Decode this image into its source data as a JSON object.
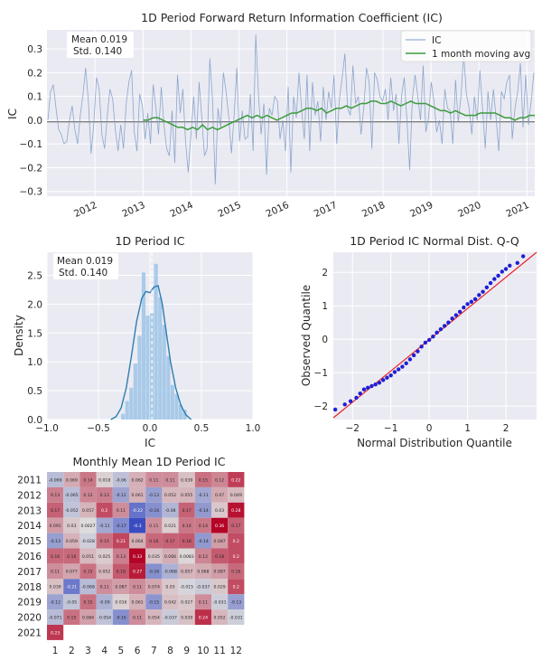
{
  "chart_data": [
    {
      "type": "line",
      "title": "1D Period Forward Return Information Coefficient (IC)",
      "xlabel": "",
      "ylabel": "IC",
      "xlim": [
        "2011-01-01",
        "2021-03-01"
      ],
      "ylim": [
        -0.32,
        0.38
      ],
      "x_ticks": [
        "2012",
        "2013",
        "2014",
        "2015",
        "2016",
        "2017",
        "2018",
        "2019",
        "2020",
        "2021"
      ],
      "y_ticks": [
        "−0.3",
        "−0.2",
        "−0.1",
        "0.0",
        "0.1",
        "0.2",
        "0.3"
      ],
      "stats": [
        "Mean 0.019",
        "Std. 0.140"
      ],
      "legend": [
        "IC",
        "1 month moving avg"
      ],
      "legend_position": "top-right",
      "colors": {
        "ic": "#7a9ac7",
        "moving_avg": "#3d9c3d",
        "zero_line": "#7f7f7f"
      },
      "grid": true,
      "series": [
        {
          "name": "IC",
          "values": [
            0.0,
            0.12,
            0.15,
            0.05,
            -0.04,
            -0.06,
            -0.1,
            -0.09,
            0.0,
            0.06,
            -0.04,
            -0.1,
            0.02,
            0.11,
            0.22,
            0.08,
            -0.14,
            -0.02,
            0.18,
            0.13,
            -0.06,
            -0.12,
            0.02,
            0.13,
            0.09,
            -0.04,
            -0.13,
            -0.02,
            -0.12,
            0.07,
            0.16,
            0.21,
            -0.05,
            -0.13,
            0.11,
            0.06,
            -0.08,
            0.03,
            -0.1,
            0.15,
            0.05,
            -0.06,
            0.14,
            -0.02,
            -0.12,
            -0.15,
            0.04,
            -0.18,
            0.19,
            0.03,
            0.13,
            -0.09,
            -0.22,
            -0.06,
            0.1,
            -0.08,
            0.16,
            0.01,
            -0.15,
            -0.12,
            0.26,
            0.08,
            -0.27,
            0.05,
            -0.03,
            0.2,
            0.12,
            0.01,
            -0.14,
            0.02,
            0.22,
            -0.09,
            0.04,
            -0.08,
            -0.07,
            0.11,
            -0.13,
            0.36,
            0.11,
            -0.06,
            0.07,
            -0.23,
            0.05,
            0.02,
            0.1,
            0.08,
            -0.08,
            0.0,
            -0.13,
            0.14,
            -0.22,
            0.1,
            0.01,
            0.2,
            0.04,
            -0.08,
            0.19,
            -0.13,
            0.16,
            0.02,
            0.08,
            -0.09,
            0.14,
            0.0,
            0.12,
            0.05,
            0.19,
            -0.1,
            0.09,
            0.18,
            0.28,
            0.05,
            0.02,
            0.23,
            0.07,
            0.1,
            -0.06,
            0.05,
            0.22,
            0.16,
            -0.12,
            0.2,
            0.17,
            0.1,
            0.08,
            0.13,
            0.0,
            0.18,
            0.04,
            0.11,
            -0.1,
            0.1,
            0.18,
            0.0,
            -0.21,
            0.09,
            0.19,
            0.1,
            0.0,
            0.23,
            -0.05,
            0.01,
            0.16,
            0.08,
            -0.05,
            0.0,
            -0.1,
            0.13,
            0.05,
            0.04,
            -0.1,
            0.17,
            -0.01,
            0.1,
            0.28,
            0.11,
            0.05,
            -0.06,
            0.1,
            0.0,
            0.21,
            0.05,
            -0.12,
            0.12,
            0.0,
            0.13,
            0.01,
            -0.13,
            0.12,
            0.09,
            0.16,
            0.19,
            -0.08,
            0.05,
            0.12,
            0.24,
            -0.03,
            0.19,
            -0.02,
            0.08,
            0.2
          ]
        },
        {
          "name": "1 month moving avg",
          "values": [
            0.0,
            0.0,
            0.01,
            0.01,
            0.0,
            -0.01,
            -0.02,
            -0.03,
            -0.03,
            -0.04,
            -0.03,
            -0.04,
            -0.02,
            -0.04,
            -0.03,
            -0.04,
            -0.03,
            -0.02,
            -0.01,
            0.0,
            0.01,
            0.02,
            0.01,
            0.02,
            0.01,
            0.02,
            0.01,
            0.0,
            0.01,
            0.02,
            0.03,
            0.03,
            0.04,
            0.05,
            0.05,
            0.04,
            0.05,
            0.03,
            0.04,
            0.05,
            0.05,
            0.06,
            0.05,
            0.06,
            0.07,
            0.07,
            0.08,
            0.08,
            0.07,
            0.07,
            0.08,
            0.07,
            0.06,
            0.07,
            0.08,
            0.07,
            0.07,
            0.07,
            0.06,
            0.05,
            0.04,
            0.04,
            0.03,
            0.04,
            0.03,
            0.02,
            0.02,
            0.02,
            0.03,
            0.03,
            0.03,
            0.03,
            0.02,
            0.01,
            0.01,
            0.0,
            0.01,
            0.01,
            0.02,
            0.02
          ]
        }
      ]
    },
    {
      "type": "bar",
      "title": "1D Period IC",
      "xlabel": "IC",
      "ylabel": "Density",
      "xlim": [
        -1.0,
        1.0
      ],
      "ylim": [
        0,
        2.9
      ],
      "x_ticks": [
        "−1.0",
        "−0.5",
        "0.0",
        "0.5",
        "1.0"
      ],
      "y_ticks": [
        "0.0",
        "0.5",
        "1.0",
        "1.5",
        "2.0",
        "2.5"
      ],
      "stats": [
        "Mean 0.019",
        "Std. 0.140"
      ],
      "mean_line": 0.019,
      "grid": true,
      "colors": {
        "bars": "#9ec4e6",
        "kde": "#2a7fb0"
      },
      "bins": [
        [
          -0.28,
          -0.24,
          0.1
        ],
        [
          -0.24,
          -0.2,
          0.32
        ],
        [
          -0.2,
          -0.16,
          0.55
        ],
        [
          -0.16,
          -0.12,
          0.97
        ],
        [
          -0.12,
          -0.08,
          1.45
        ],
        [
          -0.08,
          -0.04,
          2.55
        ],
        [
          -0.04,
          0.0,
          1.8
        ],
        [
          0.0,
          0.04,
          1.84
        ],
        [
          0.04,
          0.08,
          2.7
        ],
        [
          0.08,
          0.12,
          2.12
        ],
        [
          0.12,
          0.16,
          1.64
        ],
        [
          0.16,
          0.2,
          1.1
        ],
        [
          0.2,
          0.24,
          0.6
        ],
        [
          0.24,
          0.28,
          0.44
        ],
        [
          0.28,
          0.32,
          0.26
        ],
        [
          0.32,
          0.36,
          0.17
        ]
      ],
      "kde": [
        [
          -0.38,
          0.0
        ],
        [
          -0.33,
          0.05
        ],
        [
          -0.28,
          0.2
        ],
        [
          -0.23,
          0.55
        ],
        [
          -0.18,
          1.1
        ],
        [
          -0.13,
          1.7
        ],
        [
          -0.08,
          2.1
        ],
        [
          -0.04,
          2.22
        ],
        [
          0.0,
          2.2
        ],
        [
          0.04,
          2.3
        ],
        [
          0.08,
          2.32
        ],
        [
          0.12,
          2.0
        ],
        [
          0.16,
          1.5
        ],
        [
          0.2,
          1.0
        ],
        [
          0.25,
          0.55
        ],
        [
          0.3,
          0.25
        ],
        [
          0.35,
          0.08
        ],
        [
          0.4,
          0.0
        ]
      ]
    },
    {
      "type": "scatter",
      "title": "1D Period IC Normal Dist. Q-Q",
      "xlabel": "Normal Distribution Quantile",
      "ylabel": "Observed Quantile",
      "xlim": [
        -2.5,
        2.8
      ],
      "ylim": [
        -2.4,
        2.6
      ],
      "x_ticks": [
        "−2",
        "−1",
        "0",
        "1",
        "2"
      ],
      "y_ticks": [
        "−2",
        "−1",
        "0",
        "1",
        "2"
      ],
      "grid": true,
      "colors": {
        "points": "#1f1fd6",
        "fit_line": "#e8242a"
      },
      "points": [
        [
          -2.45,
          -2.1
        ],
        [
          -2.2,
          -1.95
        ],
        [
          -2.05,
          -1.85
        ],
        [
          -1.9,
          -1.75
        ],
        [
          -1.8,
          -1.62
        ],
        [
          -1.7,
          -1.5
        ],
        [
          -1.6,
          -1.45
        ],
        [
          -1.5,
          -1.4
        ],
        [
          -1.4,
          -1.35
        ],
        [
          -1.3,
          -1.3
        ],
        [
          -1.2,
          -1.22
        ],
        [
          -1.1,
          -1.15
        ],
        [
          -1.0,
          -1.08
        ],
        [
          -0.9,
          -0.98
        ],
        [
          -0.8,
          -0.9
        ],
        [
          -0.7,
          -0.82
        ],
        [
          -0.6,
          -0.72
        ],
        [
          -0.5,
          -0.6
        ],
        [
          -0.4,
          -0.48
        ],
        [
          -0.3,
          -0.36
        ],
        [
          -0.2,
          -0.22
        ],
        [
          -0.1,
          -0.1
        ],
        [
          0.0,
          -0.02
        ],
        [
          0.1,
          0.08
        ],
        [
          0.2,
          0.2
        ],
        [
          0.3,
          0.3
        ],
        [
          0.4,
          0.4
        ],
        [
          0.5,
          0.5
        ],
        [
          0.6,
          0.62
        ],
        [
          0.7,
          0.72
        ],
        [
          0.8,
          0.82
        ],
        [
          0.9,
          0.95
        ],
        [
          1.0,
          1.05
        ],
        [
          1.1,
          1.12
        ],
        [
          1.2,
          1.2
        ],
        [
          1.3,
          1.32
        ],
        [
          1.4,
          1.42
        ],
        [
          1.5,
          1.55
        ],
        [
          1.6,
          1.68
        ],
        [
          1.7,
          1.8
        ],
        [
          1.8,
          1.9
        ],
        [
          1.9,
          2.02
        ],
        [
          2.0,
          2.1
        ],
        [
          2.1,
          2.2
        ],
        [
          2.3,
          2.28
        ],
        [
          2.45,
          2.48
        ]
      ]
    },
    {
      "type": "heatmap",
      "title": "Monthly Mean 1D Period IC",
      "row_labels": [
        "2011",
        "2012",
        "2013",
        "2014",
        "2015",
        "2016",
        "2017",
        "2018",
        "2019",
        "2020",
        "2021"
      ],
      "col_labels": [
        "1",
        "2",
        "3",
        "4",
        "5",
        "6",
        "7",
        "8",
        "9",
        "10",
        "11",
        "12"
      ],
      "color_scale": {
        "negative": "#3b4cc0",
        "neutral": "#dddddd",
        "positive": "#b40426",
        "limit": 0.3
      },
      "values": [
        [
          -0.069,
          0.069,
          0.14,
          0.018,
          -0.06,
          0.062,
          0.11,
          0.11,
          0.039,
          0.15,
          0.12,
          0.22
        ],
        [
          0.13,
          -0.065,
          0.12,
          0.13,
          -0.12,
          0.061,
          -0.13,
          0.052,
          0.055,
          -0.11,
          0.07,
          0.049
        ],
        [
          0.17,
          -0.052,
          0.057,
          0.2,
          0.11,
          -0.22,
          -0.16,
          -0.08,
          0.17,
          -0.14,
          0.03,
          0.28
        ],
        [
          0.091,
          0.03,
          0.0027,
          -0.11,
          -0.17,
          -0.3,
          0.11,
          0.021,
          0.14,
          0.14,
          0.36,
          0.17
        ],
        [
          -0.13,
          0.059,
          -0.028,
          0.15,
          0.21,
          0.064,
          0.16,
          0.17,
          0.18,
          -0.14,
          0.087,
          0.2
        ],
        [
          0.16,
          0.16,
          0.051,
          0.025,
          0.13,
          0.33,
          0.035,
          0.066,
          0.0083,
          0.12,
          0.18,
          0.2
        ],
        [
          0.11,
          0.077,
          0.15,
          0.052,
          0.18,
          0.27,
          -0.16,
          -0.088,
          0.057,
          0.068,
          0.087,
          0.16
        ],
        [
          0.039,
          -0.21,
          -0.068,
          0.11,
          0.087,
          0.11,
          0.074,
          0.03,
          -0.015,
          -0.037,
          0.029,
          0.2
        ],
        [
          -0.12,
          -0.05,
          0.15,
          -0.09,
          0.016,
          0.061,
          -0.15,
          0.042,
          0.027,
          0.11,
          -0.031,
          -0.13
        ],
        [
          -0.071,
          0.15,
          0.084,
          -0.054,
          -0.16,
          0.11,
          0.054,
          -0.037,
          0.039,
          0.24,
          0.052,
          -0.031
        ],
        [
          0.23,
          null,
          null,
          null,
          null,
          null,
          null,
          null,
          null,
          null,
          null,
          null
        ]
      ]
    }
  ]
}
